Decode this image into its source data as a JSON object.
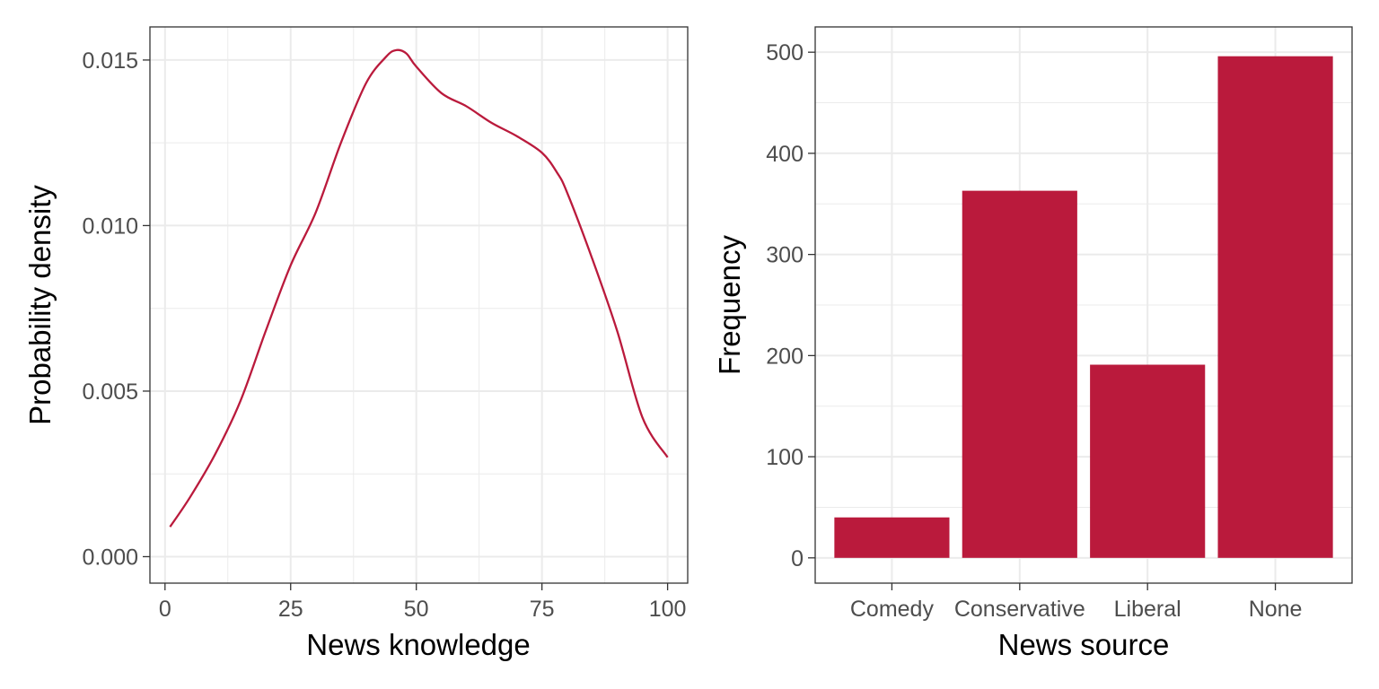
{
  "colors": {
    "accent": "#BA1A3C"
  },
  "chart_data": [
    {
      "type": "line",
      "title": "",
      "xlabel": "News knowledge",
      "ylabel": "Probability density",
      "xlim": [
        -3,
        104
      ],
      "ylim": [
        -0.0008,
        0.016
      ],
      "x_ticks": [
        0,
        25,
        50,
        75,
        100
      ],
      "x_tick_labels": [
        "0",
        "25",
        "50",
        "75",
        "100"
      ],
      "y_ticks": [
        0,
        0.005,
        0.01,
        0.015
      ],
      "y_tick_labels": [
        "0.000",
        "0.005",
        "0.010",
        "0.015"
      ],
      "grid": true,
      "series": [
        {
          "x": [
            1,
            5,
            10,
            15,
            20,
            25,
            30,
            35,
            40,
            44,
            46,
            48,
            50,
            55,
            60,
            65,
            70,
            75,
            78,
            80,
            85,
            90,
            95,
            100
          ],
          "y": [
            0.0009,
            0.0018,
            0.0031,
            0.0047,
            0.0068,
            0.0088,
            0.0104,
            0.0125,
            0.0143,
            0.0151,
            0.0153,
            0.0152,
            0.0148,
            0.014,
            0.0136,
            0.0131,
            0.0127,
            0.0122,
            0.0116,
            0.011,
            0.009,
            0.0068,
            0.0042,
            0.003
          ]
        }
      ]
    },
    {
      "type": "bar",
      "title": "",
      "xlabel": "News source",
      "ylabel": "Frequency",
      "categories": [
        "Comedy",
        "Conservative",
        "Liberal",
        "None"
      ],
      "values": [
        40,
        363,
        191,
        496
      ],
      "ylim": [
        -25,
        525
      ],
      "y_ticks": [
        0,
        100,
        200,
        300,
        400,
        500
      ],
      "y_tick_labels": [
        "0",
        "100",
        "200",
        "300",
        "400",
        "500"
      ],
      "grid": true
    }
  ]
}
